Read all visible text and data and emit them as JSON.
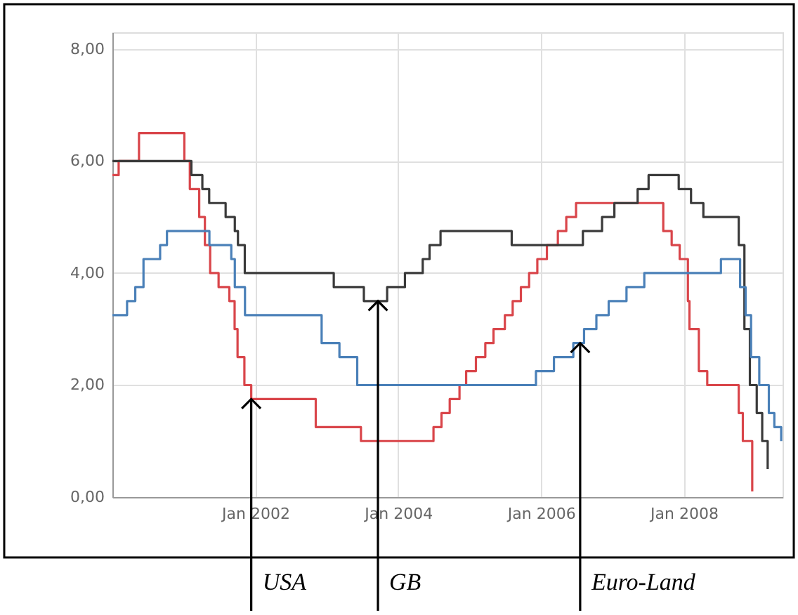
{
  "chart_data": {
    "type": "step",
    "series": [
      {
        "color": "#d9454a",
        "x": [
          "2000-01-01",
          "2000-02-02",
          "2000-05-16",
          "2001-01-03",
          "2001-01-31",
          "2001-03-20",
          "2001-04-18",
          "2001-05-15",
          "2001-06-27",
          "2001-08-21",
          "2001-09-17",
          "2001-10-02",
          "2001-11-06",
          "2001-12-11",
          "2002-11-06",
          "2003-06-25",
          "2004-06-30",
          "2004-08-10",
          "2004-09-21",
          "2004-11-10",
          "2004-12-14",
          "2005-02-02",
          "2005-03-22",
          "2005-05-03",
          "2005-06-30",
          "2005-08-09",
          "2005-09-20",
          "2005-11-01",
          "2005-12-13",
          "2006-01-31",
          "2006-03-28",
          "2006-05-10",
          "2006-06-29",
          "2007-09-18",
          "2007-10-31",
          "2007-12-11",
          "2008-01-22",
          "2008-01-30",
          "2008-03-18",
          "2008-04-30",
          "2008-10-08",
          "2008-10-29",
          "2008-12-16"
        ],
        "values": [
          5.75,
          6.0,
          6.5,
          6.0,
          5.5,
          5.0,
          4.5,
          4.0,
          3.75,
          3.5,
          3.0,
          2.5,
          2.0,
          1.75,
          1.25,
          1.0,
          1.25,
          1.5,
          1.75,
          2.0,
          2.25,
          2.5,
          2.75,
          3.0,
          3.25,
          3.5,
          3.75,
          4.0,
          4.25,
          4.5,
          4.75,
          5.0,
          5.25,
          4.75,
          4.5,
          4.25,
          3.5,
          3.0,
          2.25,
          2.0,
          1.5,
          1.0,
          0.1
        ]
      },
      {
        "color": "#3a3a3a",
        "x": [
          "2000-01-01",
          "2001-02-08",
          "2001-04-05",
          "2001-05-10",
          "2001-08-02",
          "2001-09-18",
          "2001-10-04",
          "2001-11-08",
          "2003-02-06",
          "2003-07-10",
          "2003-11-06",
          "2004-02-05",
          "2004-05-06",
          "2004-06-10",
          "2004-08-05",
          "2005-08-04",
          "2006-08-03",
          "2006-11-09",
          "2007-01-11",
          "2007-05-10",
          "2007-07-05",
          "2007-12-06",
          "2008-02-07",
          "2008-04-10",
          "2008-10-08",
          "2008-11-06",
          "2008-12-04",
          "2009-01-08",
          "2009-02-05",
          "2009-03-05"
        ],
        "values": [
          6.0,
          5.75,
          5.5,
          5.25,
          5.0,
          4.75,
          4.5,
          4.0,
          3.75,
          3.5,
          3.75,
          4.0,
          4.25,
          4.5,
          4.75,
          4.5,
          4.75,
          5.0,
          5.25,
          5.5,
          5.75,
          5.5,
          5.25,
          5.0,
          4.5,
          3.0,
          2.0,
          1.5,
          1.0,
          0.5
        ]
      },
      {
        "color": "#4a80b8",
        "x": [
          "2000-01-01",
          "2000-03-16",
          "2000-04-27",
          "2000-06-08",
          "2000-09-01",
          "2000-10-06",
          "2001-05-11",
          "2001-08-31",
          "2001-09-18",
          "2001-11-09",
          "2002-12-06",
          "2003-03-07",
          "2003-06-06",
          "2005-12-06",
          "2006-03-08",
          "2006-06-15",
          "2006-08-09",
          "2006-10-11",
          "2006-12-13",
          "2007-03-14",
          "2007-06-13",
          "2008-07-09",
          "2008-10-15",
          "2008-11-12",
          "2008-12-10",
          "2009-01-21",
          "2009-03-11",
          "2009-04-08",
          "2009-05-13"
        ],
        "values": [
          3.25,
          3.5,
          3.75,
          4.25,
          4.5,
          4.75,
          4.5,
          4.25,
          3.75,
          3.25,
          2.75,
          2.5,
          2.0,
          2.25,
          2.5,
          2.75,
          3.0,
          3.25,
          3.5,
          3.75,
          4.0,
          4.25,
          3.75,
          3.25,
          2.5,
          2.0,
          1.5,
          1.25,
          1.0
        ]
      }
    ],
    "xlim": [
      "2000-01-01",
      "2009-05-20"
    ],
    "xticks": [
      {
        "value": "2002-01-01",
        "label": "Jan 2002"
      },
      {
        "value": "2004-01-01",
        "label": "Jan 2004"
      },
      {
        "value": "2006-01-01",
        "label": "Jan 2006"
      },
      {
        "value": "2008-01-01",
        "label": "Jan 2008"
      }
    ],
    "ylim": [
      0,
      8.3
    ],
    "yticks": [
      {
        "value": 0,
        "label": "0,00"
      },
      {
        "value": 2,
        "label": "2,00"
      },
      {
        "value": 4,
        "label": "4,00"
      },
      {
        "value": 6,
        "label": "6,00"
      },
      {
        "value": 8,
        "label": "8,00"
      }
    ],
    "grid": true,
    "annotations": [
      {
        "text": "USA",
        "x": "2001-12-11",
        "y": 1.75
      },
      {
        "text": "GB",
        "x": "2003-09-20",
        "y": 3.5
      },
      {
        "text": "Euro-Land",
        "x": "2006-07-20",
        "y": 2.75
      }
    ]
  }
}
